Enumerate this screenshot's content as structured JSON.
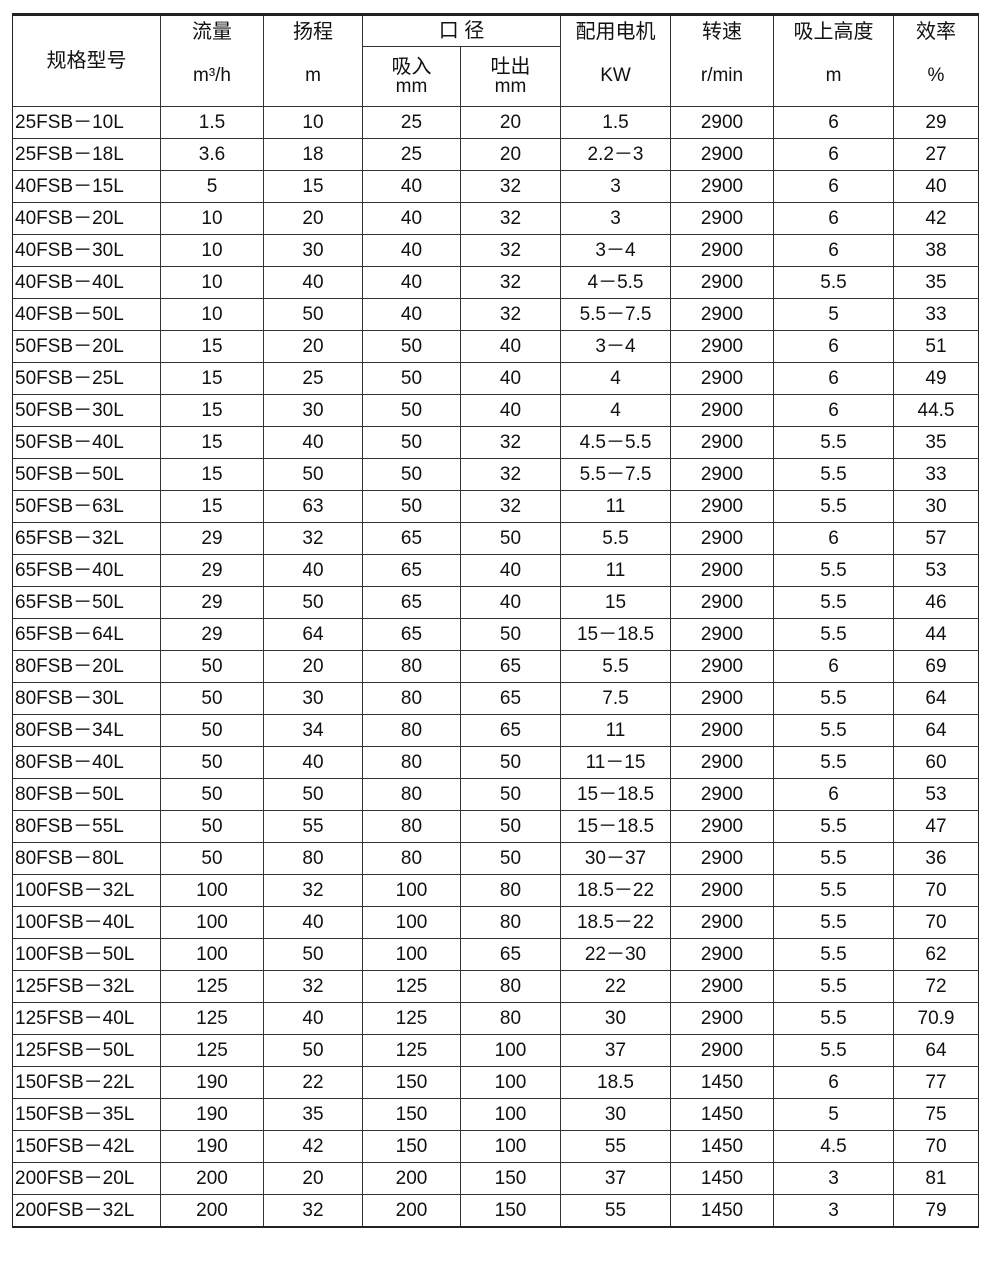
{
  "header": {
    "model": "规格型号",
    "flow": "流量",
    "flow_unit": "m³/h",
    "head": "扬程",
    "head_unit": "m",
    "diameter": "口 径",
    "inlet": "吸入",
    "inlet_unit": "mm",
    "outlet": "吐出",
    "outlet_unit": "mm",
    "motor": "配用电机",
    "motor_unit": "KW",
    "speed": "转速",
    "speed_unit": "r/min",
    "suction": "吸上高度",
    "suction_unit": "m",
    "efficiency": "效率",
    "efficiency_unit": "%"
  },
  "rows": [
    [
      "25FSB－10L",
      "1.5",
      "10",
      "25",
      "20",
      "1.5",
      "2900",
      "6",
      "29"
    ],
    [
      "25FSB－18L",
      "3.6",
      "18",
      "25",
      "20",
      "2.2－3",
      "2900",
      "6",
      "27"
    ],
    [
      "40FSB－15L",
      "5",
      "15",
      "40",
      "32",
      "3",
      "2900",
      "6",
      "40"
    ],
    [
      "40FSB－20L",
      "10",
      "20",
      "40",
      "32",
      "3",
      "2900",
      "6",
      "42"
    ],
    [
      "40FSB－30L",
      "10",
      "30",
      "40",
      "32",
      "3－4",
      "2900",
      "6",
      "38"
    ],
    [
      "40FSB－40L",
      "10",
      "40",
      "40",
      "32",
      "4－5.5",
      "2900",
      "5.5",
      "35"
    ],
    [
      "40FSB－50L",
      "10",
      "50",
      "40",
      "32",
      "5.5－7.5",
      "2900",
      "5",
      "33"
    ],
    [
      "50FSB－20L",
      "15",
      "20",
      "50",
      "40",
      "3－4",
      "2900",
      "6",
      "51"
    ],
    [
      "50FSB－25L",
      "15",
      "25",
      "50",
      "40",
      "4",
      "2900",
      "6",
      "49"
    ],
    [
      "50FSB－30L",
      "15",
      "30",
      "50",
      "40",
      "4",
      "2900",
      "6",
      "44.5"
    ],
    [
      "50FSB－40L",
      "15",
      "40",
      "50",
      "32",
      "4.5－5.5",
      "2900",
      "5.5",
      "35"
    ],
    [
      "50FSB－50L",
      "15",
      "50",
      "50",
      "32",
      "5.5－7.5",
      "2900",
      "5.5",
      "33"
    ],
    [
      "50FSB－63L",
      "15",
      "63",
      "50",
      "32",
      "11",
      "2900",
      "5.5",
      "30"
    ],
    [
      "65FSB－32L",
      "29",
      "32",
      "65",
      "50",
      "5.5",
      "2900",
      "6",
      "57"
    ],
    [
      "65FSB－40L",
      "29",
      "40",
      "65",
      "40",
      "11",
      "2900",
      "5.5",
      "53"
    ],
    [
      "65FSB－50L",
      "29",
      "50",
      "65",
      "40",
      "15",
      "2900",
      "5.5",
      "46"
    ],
    [
      "65FSB－64L",
      "29",
      "64",
      "65",
      "50",
      "15－18.5",
      "2900",
      "5.5",
      "44"
    ],
    [
      "80FSB－20L",
      "50",
      "20",
      "80",
      "65",
      "5.5",
      "2900",
      "6",
      "69"
    ],
    [
      "80FSB－30L",
      "50",
      "30",
      "80",
      "65",
      "7.5",
      "2900",
      "5.5",
      "64"
    ],
    [
      "80FSB－34L",
      "50",
      "34",
      "80",
      "65",
      "11",
      "2900",
      "5.5",
      "64"
    ],
    [
      "80FSB－40L",
      "50",
      "40",
      "80",
      "50",
      "11－15",
      "2900",
      "5.5",
      "60"
    ],
    [
      "80FSB－50L",
      "50",
      "50",
      "80",
      "50",
      "15－18.5",
      "2900",
      "6",
      "53"
    ],
    [
      "80FSB－55L",
      "50",
      "55",
      "80",
      "50",
      "15－18.5",
      "2900",
      "5.5",
      "47"
    ],
    [
      "80FSB－80L",
      "50",
      "80",
      "80",
      "50",
      "30－37",
      "2900",
      "5.5",
      "36"
    ],
    [
      "100FSB－32L",
      "100",
      "32",
      "100",
      "80",
      "18.5－22",
      "2900",
      "5.5",
      "70"
    ],
    [
      "100FSB－40L",
      "100",
      "40",
      "100",
      "80",
      "18.5－22",
      "2900",
      "5.5",
      "70"
    ],
    [
      "100FSB－50L",
      "100",
      "50",
      "100",
      "65",
      "22－30",
      "2900",
      "5.5",
      "62"
    ],
    [
      "125FSB－32L",
      "125",
      "32",
      "125",
      "80",
      "22",
      "2900",
      "5.5",
      "72"
    ],
    [
      "125FSB－40L",
      "125",
      "40",
      "125",
      "80",
      "30",
      "2900",
      "5.5",
      "70.9"
    ],
    [
      "125FSB－50L",
      "125",
      "50",
      "125",
      "100",
      "37",
      "2900",
      "5.5",
      "64"
    ],
    [
      "150FSB－22L",
      "190",
      "22",
      "150",
      "100",
      "18.5",
      "1450",
      "6",
      "77"
    ],
    [
      "150FSB－35L",
      "190",
      "35",
      "150",
      "100",
      "30",
      "1450",
      "5",
      "75"
    ],
    [
      "150FSB－42L",
      "190",
      "42",
      "150",
      "100",
      "55",
      "1450",
      "4.5",
      "70"
    ],
    [
      "200FSB－20L",
      "200",
      "20",
      "200",
      "150",
      "37",
      "1450",
      "3",
      "81"
    ],
    [
      "200FSB－32L",
      "200",
      "32",
      "200",
      "150",
      "55",
      "1450",
      "3",
      "79"
    ]
  ]
}
